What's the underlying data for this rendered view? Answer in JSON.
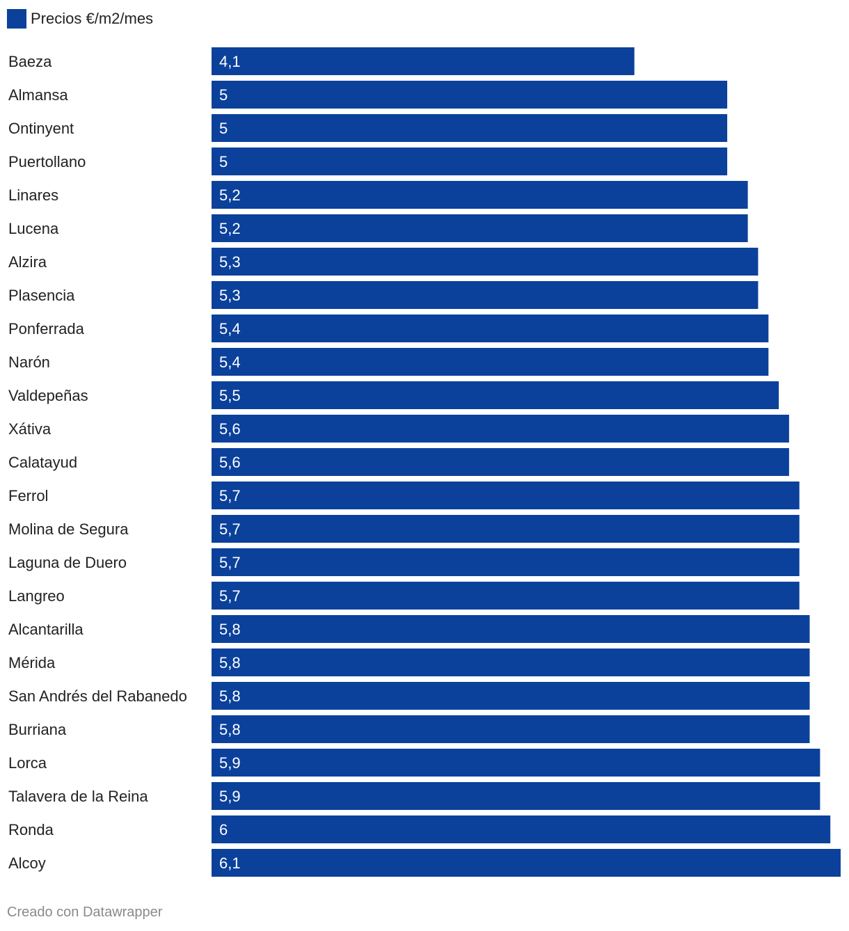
{
  "legend": {
    "label": "Precios €/m2/mes",
    "color": "#0b419b"
  },
  "footer": {
    "text": "Creado con Datawrapper"
  },
  "chart_data": {
    "type": "bar",
    "orientation": "horizontal",
    "series": [
      {
        "name": "Precios €/m2/mes",
        "color": "#0b419b",
        "values": [
          4.1,
          5,
          5,
          5,
          5.2,
          5.2,
          5.3,
          5.3,
          5.4,
          5.4,
          5.5,
          5.6,
          5.6,
          5.7,
          5.7,
          5.7,
          5.7,
          5.8,
          5.8,
          5.8,
          5.8,
          5.9,
          5.9,
          6,
          6.1
        ]
      }
    ],
    "categories": [
      "Baeza",
      "Almansa",
      "Ontinyent",
      "Puertollano",
      "Linares",
      "Lucena",
      "Alzira",
      "Plasencia",
      "Ponferrada",
      "Narón",
      "Valdepeñas",
      "Xátiva",
      "Calatayud",
      "Ferrol",
      "Molina de Segura",
      "Laguna de Duero",
      "Langreo",
      "Alcantarilla",
      "Mérida",
      "San Andrés del Rabanedo",
      "Burriana",
      "Lorca",
      "Talavera de la Reina",
      "Ronda",
      "Alcoy"
    ],
    "value_labels": [
      "4,1",
      "5",
      "5",
      "5",
      "5,2",
      "5,2",
      "5,3",
      "5,3",
      "5,4",
      "5,4",
      "5,5",
      "5,6",
      "5,6",
      "5,7",
      "5,7",
      "5,7",
      "5,7",
      "5,8",
      "5,8",
      "5,8",
      "5,8",
      "5,9",
      "5,9",
      "6",
      "6,1"
    ],
    "xlim": [
      0,
      6.1
    ],
    "grid": false,
    "legend_position": "top-left"
  }
}
